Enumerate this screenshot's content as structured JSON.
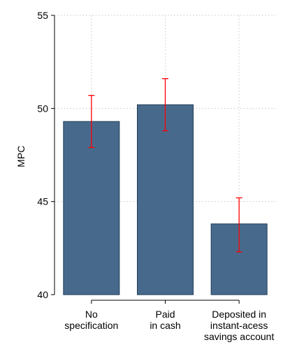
{
  "chart_data": {
    "type": "bar",
    "title": "",
    "xlabel": "",
    "ylabel": "MPC",
    "ylim": [
      40,
      55
    ],
    "yticks": [
      40,
      45,
      50,
      55
    ],
    "grid": true,
    "categories": [
      [
        "No",
        "specification"
      ],
      [
        "Paid",
        "in cash"
      ],
      [
        "Deposited in",
        "instant-acess",
        "savings account"
      ]
    ],
    "values": [
      49.3,
      50.2,
      43.8
    ],
    "error_low": [
      47.9,
      48.8,
      42.3
    ],
    "error_high": [
      50.7,
      51.6,
      45.2
    ],
    "colors": {
      "bar": "#476a8c",
      "bar_edge": "#1f3a55",
      "error": "#ff0000",
      "grid": "#c8c8c8",
      "axis": "#000000"
    }
  }
}
